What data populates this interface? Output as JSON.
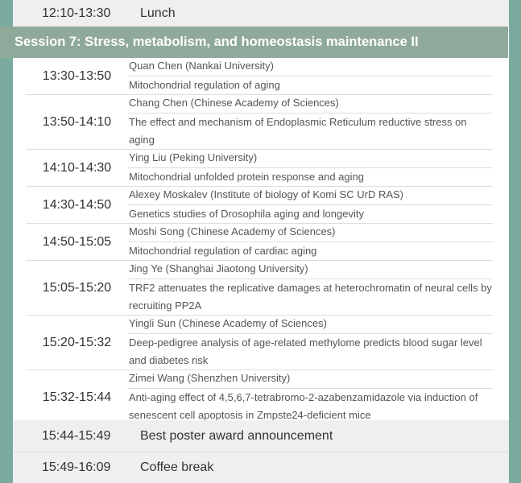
{
  "lunch": {
    "time": "12:10-13:30",
    "label": "Lunch"
  },
  "session": {
    "title": "Session 7: Stress, metabolism, and homeostasis maintenance II"
  },
  "talks": [
    {
      "time": "13:30-13:50",
      "speaker": "Quan Chen (Nankai University)",
      "title": "Mitochondrial regulation of aging"
    },
    {
      "time": "13:50-14:10",
      "speaker": "Chang Chen (Chinese Academy of Sciences)",
      "title": "The effect and mechanism of Endoplasmic Reticulum reductive stress on aging"
    },
    {
      "time": "14:10-14:30",
      "speaker": "Ying Liu (Peking University)",
      "title": "Mitochondrial unfolded protein response and aging"
    },
    {
      "time": "14:30-14:50",
      "speaker": "Alexey Moskalev (Institute of biology of Komi SC UrD RAS)",
      "title": "Genetics studies of Drosophila aging and longevity"
    },
    {
      "time": "14:50-15:05",
      "speaker": "Moshi Song (Chinese Academy of Sciences)",
      "title": "Mitochondrial regulation of cardiac aging"
    },
    {
      "time": "15:05-15:20",
      "speaker": "Jing Ye (Shanghai Jiaotong University)",
      "title": "TRF2 attenuates the replicative damages at heterochromatin of neural cells by recruiting PP2A"
    },
    {
      "time": "15:20-15:32",
      "speaker": "Yingli Sun (Chinese Academy of Sciences)",
      "title": "Deep-pedigree analysis of age-related methylome predicts blood sugar level and diabetes risk"
    },
    {
      "time": "15:32-15:44",
      "speaker": "Zimei Wang (Shenzhen University)",
      "title": "Anti-aging effect of 4,5,6,7-tetrabromo-2-azabenzamidazole via induction of senescent cell apoptosis in Zmpste24-deficient mice"
    }
  ],
  "poster": {
    "time": "15:44-15:49",
    "label": "Best poster award announcement"
  },
  "coffee": {
    "time": "15:49-16:09",
    "label": "Coffee break"
  }
}
